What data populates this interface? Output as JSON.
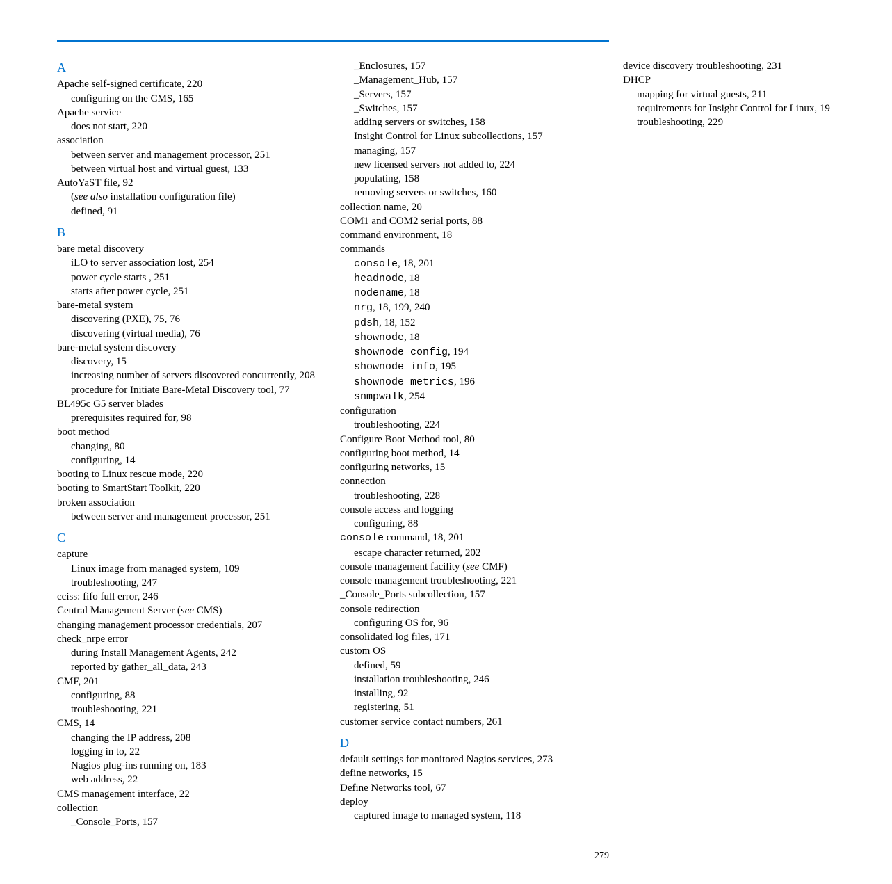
{
  "page_number": "279",
  "rule_color": "#0073cf",
  "heading_color": "#0073cf",
  "sections": [
    {
      "letter": "A",
      "entries": [
        {
          "l": 0,
          "t": "Apache self-signed certificate, 220"
        },
        {
          "l": 1,
          "t": "configuring on the CMS, 165"
        },
        {
          "l": 0,
          "t": "Apache service"
        },
        {
          "l": 1,
          "t": "does not start, 220"
        },
        {
          "l": 0,
          "t": "association"
        },
        {
          "l": 1,
          "t": "between server and management processor, 251"
        },
        {
          "l": 1,
          "t": "between virtual host and virtual guest, 133"
        },
        {
          "l": 0,
          "t": "AutoYaST file, 92"
        },
        {
          "l": 1,
          "pre": "(",
          "it": "see also",
          "post": " installation configuration file)"
        },
        {
          "l": 1,
          "t": "defined, 91"
        }
      ]
    },
    {
      "letter": "B",
      "entries": [
        {
          "l": 0,
          "t": "bare metal discovery"
        },
        {
          "l": 1,
          "t": "iLO to server association lost, 254"
        },
        {
          "l": 1,
          "t": "power cycle starts , 251"
        },
        {
          "l": 1,
          "t": "starts after power cycle, 251"
        },
        {
          "l": 0,
          "t": "bare-metal system"
        },
        {
          "l": 1,
          "t": "discovering (PXE), 75, 76"
        },
        {
          "l": 1,
          "t": "discovering (virtual media), 76"
        },
        {
          "l": 0,
          "t": "bare-metal system discovery"
        },
        {
          "l": 1,
          "t": "discovery, 15"
        },
        {
          "l": 1,
          "hang": true,
          "t": "increasing number of servers discovered concurrently, 208"
        },
        {
          "l": 1,
          "t": "procedure for Initiate Bare-Metal Discovery tool, 77"
        },
        {
          "l": 0,
          "t": "BL495c G5 server blades"
        },
        {
          "l": 1,
          "t": "prerequisites required for, 98"
        },
        {
          "l": 0,
          "t": "boot method"
        },
        {
          "l": 1,
          "t": "changing, 80"
        },
        {
          "l": 1,
          "t": "configuring, 14"
        },
        {
          "l": 0,
          "t": "booting to Linux rescue mode, 220"
        },
        {
          "l": 0,
          "t": "booting to SmartStart Toolkit, 220"
        },
        {
          "l": 0,
          "t": "broken association"
        },
        {
          "l": 1,
          "t": "between server and management processor, 251"
        }
      ]
    },
    {
      "letter": "C",
      "entries": [
        {
          "l": 0,
          "t": "capture"
        },
        {
          "l": 1,
          "t": "Linux image from managed system, 109"
        },
        {
          "l": 1,
          "t": "troubleshooting, 247"
        },
        {
          "l": 0,
          "t": "cciss: fifo full error, 246"
        },
        {
          "l": 0,
          "pre": "Central Management Server (",
          "it": "see",
          "post": " CMS)"
        },
        {
          "l": 0,
          "t": "changing management processor credentials, 207"
        },
        {
          "l": 0,
          "t": "check_nrpe error"
        },
        {
          "l": 1,
          "t": "during Install Management Agents, 242"
        },
        {
          "l": 1,
          "t": "reported by gather_all_data, 243"
        },
        {
          "l": 0,
          "t": "CMF, 201"
        },
        {
          "l": 1,
          "t": "configuring, 88"
        },
        {
          "l": 1,
          "t": "troubleshooting, 221"
        },
        {
          "l": 0,
          "t": "CMS, 14"
        },
        {
          "l": 1,
          "t": "changing the IP address, 208"
        },
        {
          "l": 1,
          "t": "logging in to, 22"
        },
        {
          "l": 1,
          "t": "Nagios plug-ins running on, 183"
        },
        {
          "l": 1,
          "t": "web address, 22"
        },
        {
          "l": 0,
          "t": "CMS management interface, 22"
        },
        {
          "l": 0,
          "t": "collection"
        },
        {
          "l": 1,
          "t": "_Console_Ports, 157"
        },
        {
          "l": 1,
          "t": "_Enclosures, 157"
        },
        {
          "l": 1,
          "t": "_Management_Hub, 157"
        },
        {
          "l": 1,
          "t": "_Servers, 157"
        },
        {
          "l": 1,
          "t": "_Switches, 157"
        },
        {
          "l": 1,
          "t": "adding servers or switches, 158"
        },
        {
          "l": 1,
          "t": "Insight Control for Linux subcollections, 157"
        },
        {
          "l": 1,
          "t": "managing, 157"
        },
        {
          "l": 1,
          "t": "new licensed servers not added to, 224"
        },
        {
          "l": 1,
          "t": "populating, 158"
        },
        {
          "l": 1,
          "t": "removing servers or switches, 160"
        },
        {
          "l": 0,
          "t": "collection name, 20"
        },
        {
          "l": 0,
          "t": "COM1 and COM2 serial ports, 88"
        },
        {
          "l": 0,
          "t": "command environment, 18"
        },
        {
          "l": 0,
          "t": "commands"
        },
        {
          "l": 1,
          "mono": "console",
          "post": ", 18, 201"
        },
        {
          "l": 1,
          "mono": "headnode",
          "post": ", 18"
        },
        {
          "l": 1,
          "mono": "nodename",
          "post": ", 18"
        },
        {
          "l": 1,
          "mono": "nrg",
          "post": ", 18, 199, 240"
        },
        {
          "l": 1,
          "mono": "pdsh",
          "post": ", 18, 152"
        },
        {
          "l": 1,
          "mono": "shownode",
          "post": ", 18"
        },
        {
          "l": 1,
          "mono": "shownode config",
          "post": ", 194"
        },
        {
          "l": 1,
          "mono": "shownode info",
          "post": ", 195"
        },
        {
          "l": 1,
          "mono": "shownode metrics",
          "post": ", 196"
        },
        {
          "l": 1,
          "mono": "snmpwalk",
          "post": ", 254"
        },
        {
          "l": 0,
          "t": "configuration"
        },
        {
          "l": 1,
          "t": "troubleshooting, 224"
        },
        {
          "l": 0,
          "t": "Configure Boot Method tool, 80"
        },
        {
          "l": 0,
          "t": "configuring boot method, 14"
        },
        {
          "l": 0,
          "t": "configuring networks, 15"
        },
        {
          "l": 0,
          "t": "connection"
        },
        {
          "l": 1,
          "t": "troubleshooting, 228"
        },
        {
          "l": 0,
          "t": "console access and logging"
        },
        {
          "l": 1,
          "t": "configuring, 88"
        },
        {
          "l": 0,
          "mono": "console",
          "post": " command, 18, 201"
        },
        {
          "l": 1,
          "t": "escape character returned, 202"
        },
        {
          "l": 0,
          "pre": "console management facility (",
          "it": "see",
          "post": " CMF)"
        },
        {
          "l": 0,
          "t": "console management troubleshooting, 221"
        },
        {
          "l": 0,
          "t": "_Console_Ports subcollection, 157"
        },
        {
          "l": 0,
          "t": "console redirection"
        },
        {
          "l": 1,
          "t": "configuring OS for, 96"
        },
        {
          "l": 0,
          "t": "consolidated log files, 171"
        },
        {
          "l": 0,
          "t": "custom OS"
        },
        {
          "l": 1,
          "t": "defined, 59"
        },
        {
          "l": 1,
          "t": "installation troubleshooting, 246"
        },
        {
          "l": 1,
          "t": "installing, 92"
        },
        {
          "l": 1,
          "t": "registering, 51"
        },
        {
          "l": 0,
          "t": "customer service contact numbers, 261"
        }
      ]
    },
    {
      "letter": "D",
      "entries": [
        {
          "l": 0,
          "t": "default settings for monitored Nagios services, 273"
        },
        {
          "l": 0,
          "t": "define networks, 15"
        },
        {
          "l": 0,
          "t": "Define Networks tool, 67"
        },
        {
          "l": 0,
          "t": "deploy"
        },
        {
          "l": 1,
          "t": "captured image to managed system, 118"
        },
        {
          "l": 0,
          "t": "device discovery troubleshooting, 231"
        },
        {
          "l": 0,
          "t": "DHCP"
        },
        {
          "l": 1,
          "t": "mapping for virtual guests, 211"
        },
        {
          "l": 1,
          "t": "requirements for Insight Control for Linux, 19"
        },
        {
          "l": 1,
          "t": "troubleshooting, 229"
        }
      ]
    }
  ]
}
